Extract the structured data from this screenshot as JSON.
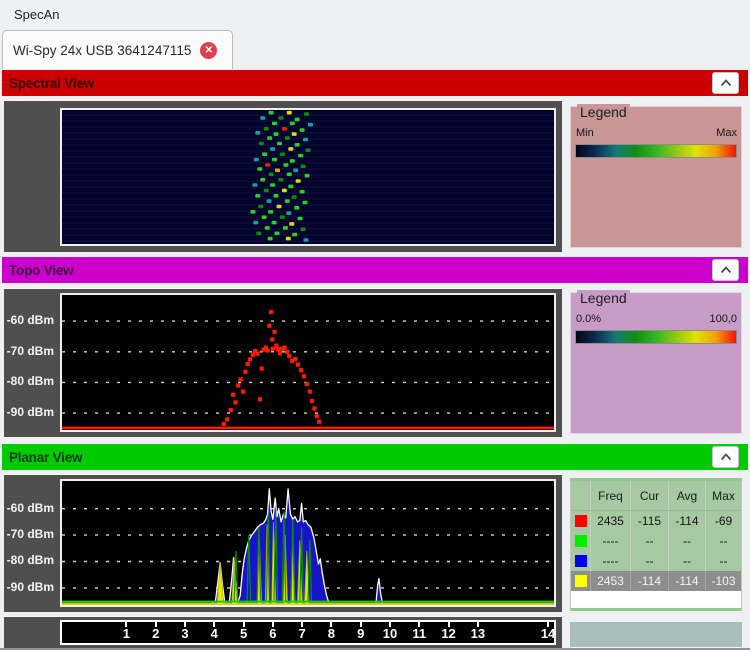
{
  "menu": {
    "label": "SpecAn"
  },
  "tab": {
    "label": "Wi-Spy 24x USB 3641247115"
  },
  "legend_gradient": [
    "#050518",
    "#0d2d52",
    "#157878",
    "#0f9010",
    "#35b525",
    "#8fc813",
    "#e2e207",
    "#f0a000",
    "#fb0d00"
  ],
  "panels": {
    "spectral": {
      "title": "Spectral View",
      "header_color": "#cc0001",
      "legend": {
        "title": "Legend",
        "min_label": "Min",
        "max_label": "Max",
        "bg": "#c89697"
      }
    },
    "topo": {
      "title": "Topo View",
      "header_color": "#cc00cc",
      "legend": {
        "title": "Legend",
        "min_label": "0.0%",
        "max_label": "100,0",
        "bg": "#c79dc8"
      }
    },
    "planar": {
      "title": "Planar View",
      "header_color": "#00cb00",
      "table": {
        "headers": {
          "swatch": "",
          "freq": "Freq",
          "cur": "Cur",
          "avg": "Avg",
          "max": "Max"
        },
        "rows": [
          {
            "color": "#ff0000",
            "freq": "2435",
            "cur": "-115",
            "avg": "-114",
            "max": "-69"
          },
          {
            "color": "#00ee00",
            "freq": "----",
            "cur": "--",
            "avg": "--",
            "max": "--"
          },
          {
            "color": "#0000ee",
            "freq": "----",
            "cur": "--",
            "avg": "--",
            "max": "--"
          },
          {
            "color": "#ffff00",
            "freq": "2453",
            "cur": "-114",
            "avg": "-114",
            "max": "-103"
          }
        ]
      }
    }
  },
  "chart_data": [
    {
      "id": "spectral",
      "type": "heatmap",
      "title": "Spectral View waterfall (time vs 2.4 GHz frequency, amplitude colormap Min→Max)",
      "palette": [
        "#15457a",
        "#18a0a0",
        "#28d028",
        "#0c8c0c",
        "#d8d820",
        "#ee2200",
        "#ff9900"
      ],
      "dots": [
        [
          0.425,
          0.02,
          2
        ],
        [
          0.462,
          0.02,
          4
        ],
        [
          0.497,
          0.03,
          3
        ],
        [
          0.408,
          0.06,
          1
        ],
        [
          0.445,
          0.06,
          3
        ],
        [
          0.478,
          0.07,
          2
        ],
        [
          0.432,
          0.1,
          2
        ],
        [
          0.468,
          0.1,
          2
        ],
        [
          0.505,
          0.11,
          1
        ],
        [
          0.415,
          0.14,
          3
        ],
        [
          0.452,
          0.14,
          5
        ],
        [
          0.488,
          0.15,
          2
        ],
        [
          0.398,
          0.17,
          1
        ],
        [
          0.435,
          0.18,
          2
        ],
        [
          0.472,
          0.18,
          4
        ],
        [
          0.422,
          0.21,
          2
        ],
        [
          0.458,
          0.21,
          3
        ],
        [
          0.495,
          0.22,
          1
        ],
        [
          0.405,
          0.25,
          3
        ],
        [
          0.442,
          0.25,
          2
        ],
        [
          0.478,
          0.26,
          2
        ],
        [
          0.428,
          0.29,
          1
        ],
        [
          0.465,
          0.29,
          4
        ],
        [
          0.5,
          0.3,
          3
        ],
        [
          0.412,
          0.33,
          2
        ],
        [
          0.448,
          0.33,
          3
        ],
        [
          0.485,
          0.34,
          2
        ],
        [
          0.395,
          0.37,
          1
        ],
        [
          0.432,
          0.37,
          2
        ],
        [
          0.468,
          0.38,
          2
        ],
        [
          0.418,
          0.41,
          5
        ],
        [
          0.455,
          0.41,
          2
        ],
        [
          0.49,
          0.42,
          3
        ],
        [
          0.402,
          0.44,
          2
        ],
        [
          0.438,
          0.45,
          6
        ],
        [
          0.475,
          0.45,
          1
        ],
        [
          0.425,
          0.48,
          3
        ],
        [
          0.462,
          0.48,
          2
        ],
        [
          0.498,
          0.49,
          2
        ],
        [
          0.408,
          0.52,
          2
        ],
        [
          0.445,
          0.52,
          3
        ],
        [
          0.48,
          0.53,
          4
        ],
        [
          0.392,
          0.56,
          1
        ],
        [
          0.428,
          0.56,
          2
        ],
        [
          0.465,
          0.57,
          2
        ],
        [
          0.415,
          0.6,
          3
        ],
        [
          0.452,
          0.6,
          4
        ],
        [
          0.488,
          0.61,
          2
        ],
        [
          0.398,
          0.64,
          2
        ],
        [
          0.435,
          0.64,
          2
        ],
        [
          0.472,
          0.65,
          3
        ],
        [
          0.421,
          0.68,
          1
        ],
        [
          0.458,
          0.68,
          2
        ],
        [
          0.494,
          0.69,
          2
        ],
        [
          0.404,
          0.72,
          3
        ],
        [
          0.441,
          0.72,
          4
        ],
        [
          0.477,
          0.73,
          2
        ],
        [
          0.388,
          0.76,
          2
        ],
        [
          0.424,
          0.76,
          2
        ],
        [
          0.461,
          0.77,
          1
        ],
        [
          0.411,
          0.8,
          2
        ],
        [
          0.448,
          0.8,
          3
        ],
        [
          0.484,
          0.81,
          2
        ],
        [
          0.394,
          0.84,
          1
        ],
        [
          0.431,
          0.84,
          2
        ],
        [
          0.467,
          0.85,
          4
        ],
        [
          0.417,
          0.88,
          2
        ],
        [
          0.454,
          0.88,
          2
        ],
        [
          0.49,
          0.89,
          3
        ],
        [
          0.4,
          0.92,
          3
        ],
        [
          0.437,
          0.92,
          2
        ],
        [
          0.473,
          0.93,
          2
        ],
        [
          0.423,
          0.96,
          2
        ],
        [
          0.46,
          0.96,
          4
        ],
        [
          0.496,
          0.97,
          1
        ]
      ]
    },
    {
      "id": "topo",
      "type": "scatter",
      "title": "Topo View (density of sweeps, dBm vs frequency)",
      "xlim": [
        2401,
        2485
      ],
      "ylim": [
        -51.5,
        -95.5
      ],
      "grid_dbm": [
        -60,
        -70,
        -80,
        -90
      ],
      "y_tick_labels": [
        "-60 dBm",
        "-70 dBm",
        "-80 dBm",
        "-90 dBm"
      ],
      "dot_color": "#ff1a00",
      "baseline_dbm": -94.8,
      "points": [
        [
          2428.6,
          -93.5
        ],
        [
          2429.2,
          -92
        ],
        [
          2429.8,
          -89
        ],
        [
          2430.2,
          -84
        ],
        [
          2430.6,
          -86.5
        ],
        [
          2431.1,
          -81
        ],
        [
          2431.5,
          -79
        ],
        [
          2431.9,
          -83
        ],
        [
          2432.3,
          -76.5
        ],
        [
          2432.7,
          -74
        ],
        [
          2433.1,
          -72.5
        ],
        [
          2433.6,
          -71
        ],
        [
          2434.0,
          -69.8
        ],
        [
          2434.4,
          -70.6
        ],
        [
          2434.8,
          -85.5
        ],
        [
          2435.1,
          -75.5
        ],
        [
          2435.4,
          -69.3
        ],
        [
          2435.8,
          -68.6
        ],
        [
          2436.1,
          -69.6
        ],
        [
          2436.4,
          -61.5
        ],
        [
          2436.7,
          -57
        ],
        [
          2436.9,
          -66
        ],
        [
          2437.0,
          -69
        ],
        [
          2437.3,
          -63.5
        ],
        [
          2437.6,
          -68
        ],
        [
          2437.9,
          -69.2
        ],
        [
          2438.2,
          -70.5
        ],
        [
          2438.6,
          -69
        ],
        [
          2439.0,
          -68.6
        ],
        [
          2439.4,
          -70
        ],
        [
          2439.8,
          -71.4
        ],
        [
          2440.3,
          -73
        ],
        [
          2440.8,
          -72.4
        ],
        [
          2441.3,
          -74.2
        ],
        [
          2441.8,
          -76
        ],
        [
          2442.3,
          -78
        ],
        [
          2442.8,
          -80.5
        ],
        [
          2443.3,
          -83
        ],
        [
          2443.7,
          -86
        ],
        [
          2444.1,
          -88.5
        ],
        [
          2444.5,
          -91
        ],
        [
          2444.9,
          -92.8
        ]
      ]
    },
    {
      "id": "planar",
      "type": "area",
      "title": "Planar View (current/average/max traces, dBm vs Wi-Fi channel)",
      "xlim": [
        2401,
        2485
      ],
      "ylim": [
        -49.5,
        -96.5
      ],
      "grid_dbm": [
        -60,
        -70,
        -80,
        -90
      ],
      "y_tick_labels": [
        "-60 dBm",
        "-70 dBm",
        "-80 dBm",
        "-90 dBm"
      ],
      "x_ticks": [
        {
          "label": "1",
          "mhz": 2412
        },
        {
          "label": "2",
          "mhz": 2417
        },
        {
          "label": "3",
          "mhz": 2422
        },
        {
          "label": "4",
          "mhz": 2427
        },
        {
          "label": "5",
          "mhz": 2432
        },
        {
          "label": "6",
          "mhz": 2437
        },
        {
          "label": "7",
          "mhz": 2442
        },
        {
          "label": "8",
          "mhz": 2447
        },
        {
          "label": "9",
          "mhz": 2452
        },
        {
          "label": "10",
          "mhz": 2457
        },
        {
          "label": "11",
          "mhz": 2462
        },
        {
          "label": "12",
          "mhz": 2467
        },
        {
          "label": "13",
          "mhz": 2472
        },
        {
          "label": "14",
          "mhz": 2484
        }
      ],
      "series": {
        "max": {
          "name": "Max",
          "fill": "#1616c8",
          "stroke": "#ffffff",
          "points": [
            [
              2401,
              -96
            ],
            [
              2426.5,
              -96
            ],
            [
              2427.2,
              -95
            ],
            [
              2427.6,
              -88
            ],
            [
              2428.0,
              -80.5
            ],
            [
              2428.4,
              -89
            ],
            [
              2428.8,
              -95.5
            ],
            [
              2429.6,
              -95
            ],
            [
              2430.0,
              -86
            ],
            [
              2430.3,
              -78.5
            ],
            [
              2430.7,
              -90
            ],
            [
              2431.0,
              -95.5
            ],
            [
              2431.4,
              -93
            ],
            [
              2431.8,
              -84
            ],
            [
              2432.1,
              -79
            ],
            [
              2432.5,
              -75
            ],
            [
              2432.9,
              -72
            ],
            [
              2433.4,
              -70
            ],
            [
              2433.9,
              -68.5
            ],
            [
              2434.4,
              -67
            ],
            [
              2434.9,
              -66
            ],
            [
              2435.4,
              -65.5
            ],
            [
              2435.8,
              -64
            ],
            [
              2436.1,
              -62
            ],
            [
              2436.4,
              -52.5
            ],
            [
              2436.7,
              -61
            ],
            [
              2437.0,
              -64
            ],
            [
              2437.4,
              -56
            ],
            [
              2437.7,
              -63
            ],
            [
              2438.0,
              -60
            ],
            [
              2438.4,
              -65
            ],
            [
              2438.8,
              -62
            ],
            [
              2439.2,
              -63.5
            ],
            [
              2439.6,
              -52.5
            ],
            [
              2440.0,
              -62
            ],
            [
              2440.4,
              -64
            ],
            [
              2440.8,
              -63
            ],
            [
              2441.2,
              -65
            ],
            [
              2441.6,
              -64.5
            ],
            [
              2441.9,
              -58
            ],
            [
              2442.2,
              -65
            ],
            [
              2442.6,
              -64.5
            ],
            [
              2443.0,
              -66
            ],
            [
              2443.5,
              -67
            ],
            [
              2444.0,
              -71
            ],
            [
              2444.4,
              -76
            ],
            [
              2444.8,
              -81
            ],
            [
              2445.1,
              -79
            ],
            [
              2445.4,
              -84
            ],
            [
              2445.8,
              -89
            ],
            [
              2446.2,
              -93
            ],
            [
              2446.6,
              -96
            ],
            [
              2454.6,
              -96
            ],
            [
              2454.9,
              -89
            ],
            [
              2455.1,
              -86.5
            ],
            [
              2455.4,
              -92
            ],
            [
              2455.7,
              -96
            ],
            [
              2485,
              -96
            ]
          ]
        },
        "cur": {
          "name": "Current",
          "fill": "#e8e805",
          "stroke": "#b8b800",
          "points": [
            [
              2401,
              -95.8
            ],
            [
              2427.5,
              -95.8
            ],
            [
              2428.0,
              -80.5
            ],
            [
              2428.6,
              -95.8
            ],
            [
              2430.0,
              -95.8
            ],
            [
              2430.4,
              -78.5
            ],
            [
              2430.9,
              -95.8
            ],
            [
              2434.4,
              -95.8
            ],
            [
              2434.7,
              -72
            ],
            [
              2435.1,
              -95.8
            ],
            [
              2435.7,
              -95.8
            ],
            [
              2436.0,
              -66
            ],
            [
              2436.3,
              -95.8
            ],
            [
              2436.8,
              -95.8
            ],
            [
              2437.1,
              -65
            ],
            [
              2437.5,
              -95.8
            ],
            [
              2438.8,
              -95.8
            ],
            [
              2439.1,
              -70
            ],
            [
              2439.5,
              -95.8
            ],
            [
              2440.0,
              -95.8
            ],
            [
              2440.4,
              -71
            ],
            [
              2440.8,
              -95.8
            ],
            [
              2441.2,
              -95.8
            ],
            [
              2441.6,
              -72
            ],
            [
              2442.0,
              -95.8
            ],
            [
              2442.4,
              -95.8
            ],
            [
              2442.8,
              -76
            ],
            [
              2443.2,
              -95.8
            ],
            [
              2485,
              -95.8
            ]
          ]
        },
        "avg": {
          "name": "Average",
          "color": "#0c8c0c",
          "baseline_color": "#1ec81e",
          "baseline_dbm": -95.2,
          "points": [
            [
              2401,
              -95.2
            ],
            [
              2430.4,
              -95.2
            ],
            [
              2430.7,
              -76
            ],
            [
              2431.0,
              -95.2
            ],
            [
              2432.6,
              -95.2
            ],
            [
              2432.9,
              -70
            ],
            [
              2433.2,
              -95.2
            ],
            [
              2434.3,
              -95.2
            ],
            [
              2434.6,
              -67
            ],
            [
              2434.9,
              -95.2
            ],
            [
              2435.9,
              -95.2
            ],
            [
              2436.2,
              -62
            ],
            [
              2436.5,
              -95.2
            ],
            [
              2437.2,
              -95.2
            ],
            [
              2437.5,
              -60
            ],
            [
              2437.8,
              -95.2
            ],
            [
              2438.6,
              -95.2
            ],
            [
              2438.9,
              -61
            ],
            [
              2439.2,
              -95.2
            ],
            [
              2440.1,
              -95.2
            ],
            [
              2440.4,
              -64
            ],
            [
              2440.7,
              -95.2
            ],
            [
              2441.6,
              -95.2
            ],
            [
              2441.9,
              -67
            ],
            [
              2442.2,
              -95.2
            ],
            [
              2443.0,
              -95.2
            ],
            [
              2443.3,
              -72
            ],
            [
              2443.6,
              -95.2
            ],
            [
              2485,
              -95.2
            ]
          ]
        }
      }
    }
  ]
}
